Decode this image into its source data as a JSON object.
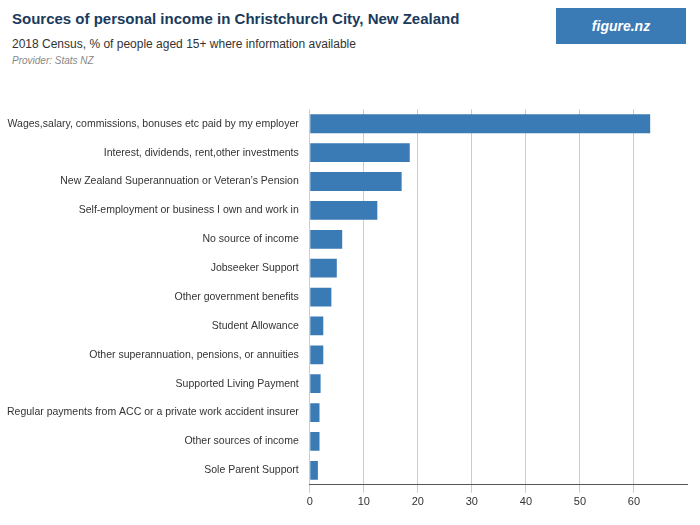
{
  "chart_data": {
    "type": "bar",
    "orientation": "horizontal",
    "title": "Sources of personal income in Christchurch City, New Zealand",
    "subtitle": "2018 Census, % of people aged 15+ where information available",
    "annotations": [
      "Provider: Stats NZ",
      "figure.nz"
    ],
    "categories": [
      "Wages,salary, commissions, bonuses etc paid by my employer",
      "Interest, dividends, rent,other investments",
      "New Zealand Superannuation or Veteran’s Pension",
      "Self-employment or business I own and work in",
      "No source of income",
      "Jobseeker Support",
      "Other government benefits",
      "Student Allowance",
      "Other superannuation, pensions, or annuities",
      "Supported Living Payment",
      "Regular payments from ACC or a private work accident insurer",
      "Other sources of income",
      "Sole Parent Support"
    ],
    "values": [
      63.0,
      18.5,
      17.0,
      12.5,
      6.0,
      5.0,
      4.0,
      2.5,
      2.5,
      2.0,
      1.8,
      1.8,
      1.5
    ],
    "color": "#3a7ab5",
    "xlim": [
      0,
      70
    ],
    "xticks": [
      0,
      10,
      20,
      30,
      40,
      50,
      60
    ],
    "grid": true
  }
}
